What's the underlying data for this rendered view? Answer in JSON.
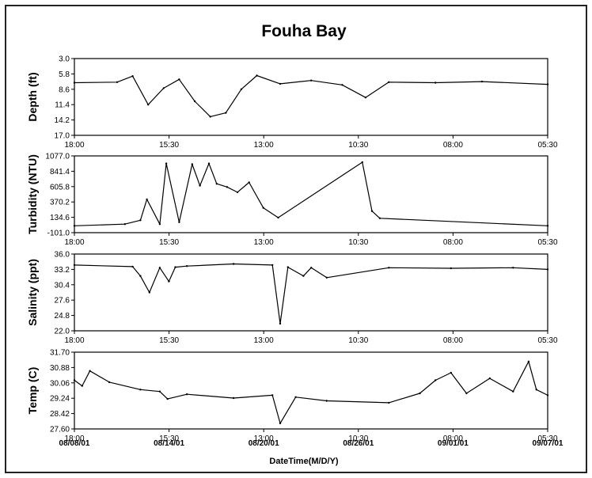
{
  "chart_data": {
    "title": "Fouha Bay",
    "xlabel": "DateTime(M/D/Y)",
    "x_time_ticks": [
      "18:00",
      "15:30",
      "13:00",
      "10:30",
      "08:00",
      "05:30"
    ],
    "x_date_ticks": [
      "08/08/01",
      "08/14/01",
      "08/20/01",
      "08/26/01",
      "09/01/01",
      "09/07/01"
    ],
    "line_color": "#000000",
    "panels": [
      {
        "type": "line",
        "ylabel": "Depth (ft)",
        "yticks": [
          "3.0",
          "5.8",
          "8.6",
          "11.4",
          "14.2",
          "17.0"
        ],
        "ylim": [
          17.0,
          3.0
        ],
        "inverted": true,
        "x": [
          "08/07 18:00",
          "08/10 12:00",
          "08/11 12:00",
          "08/12 12:00",
          "08/13 12:00",
          "08/14 12:00",
          "08/15 12:00",
          "08/16 12:00",
          "08/17 12:00",
          "08/18 12:00",
          "08/19 12:00",
          "08/21 00:00",
          "08/23 00:00",
          "08/25 00:00",
          "08/26 12:00",
          "08/28 00:00",
          "08/31 00:00",
          "09/03 00:00",
          "09/07 05:30"
        ],
        "values": [
          7.4,
          7.3,
          6.2,
          11.4,
          8.4,
          6.8,
          10.8,
          13.6,
          12.9,
          8.6,
          6.1,
          7.6,
          7.0,
          7.8,
          10.1,
          7.3,
          7.4,
          7.2,
          7.7
        ]
      },
      {
        "type": "line",
        "ylabel": "Turbidity (NTU)",
        "yticks": [
          "1077.0",
          "841.4",
          "605.8",
          "370.2",
          "134.6",
          "-101.0"
        ],
        "ylim": [
          -101.0,
          1077.0
        ],
        "x": [
          "08/07 18:00",
          "08/11 00:00",
          "08/12 00:00",
          "08/12 10:00",
          "08/13 06:00",
          "08/13 16:00",
          "08/14 12:00",
          "08/15 08:00",
          "08/15 20:00",
          "08/16 10:00",
          "08/16 22:00",
          "08/17 14:00",
          "08/18 06:00",
          "08/19 00:00",
          "08/19 22:00",
          "08/20 21:00",
          "08/26 07:00",
          "08/26 22:00",
          "08/27 10:00",
          "09/07 05:30"
        ],
        "values": [
          5,
          30,
          90,
          410,
          30,
          960,
          60,
          950,
          620,
          960,
          650,
          600,
          520,
          670,
          280,
          130,
          980,
          230,
          120,
          5
        ]
      },
      {
        "type": "line",
        "ylabel": "Salinity (ppt)",
        "yticks": [
          "36.0",
          "33.2",
          "30.4",
          "27.6",
          "24.8",
          "22.0"
        ],
        "ylim": [
          22.0,
          36.0
        ],
        "x": [
          "08/07 18:00",
          "08/11 12:00",
          "08/12 00:00",
          "08/12 14:00",
          "08/13 06:00",
          "08/13 20:00",
          "08/14 06:00",
          "08/15 00:00",
          "08/18 00:00",
          "08/20 12:00",
          "08/21 00:00",
          "08/21 12:00",
          "08/22 12:00",
          "08/23 00:00",
          "08/24 00:00",
          "08/28 00:00",
          "09/01 00:00",
          "09/05 00:00",
          "09/07 05:30"
        ],
        "values": [
          34.0,
          33.7,
          32.0,
          29.0,
          33.5,
          31.0,
          33.6,
          33.8,
          34.2,
          34.0,
          23.3,
          33.6,
          32.0,
          33.5,
          31.7,
          33.5,
          33.4,
          33.5,
          33.2
        ]
      },
      {
        "type": "line",
        "ylabel": "Temp (C)",
        "yticks": [
          "31.70",
          "30.88",
          "30.06",
          "29.24",
          "28.42",
          "27.60"
        ],
        "ylim": [
          27.6,
          31.7
        ],
        "x": [
          "08/07 18:00",
          "08/08 06:00",
          "08/08 18:00",
          "08/10 00:00",
          "08/12 00:00",
          "08/13 06:00",
          "08/13 18:00",
          "08/15 00:00",
          "08/18 00:00",
          "08/20 12:00",
          "08/21 00:00",
          "08/22 00:00",
          "08/24 00:00",
          "08/28 00:00",
          "08/30 00:00",
          "08/31 00:00",
          "09/01 00:00",
          "09/02 00:00",
          "09/03 12:00",
          "09/05 00:00",
          "09/06 00:00",
          "09/06 12:00",
          "09/07 05:30"
        ],
        "values": [
          30.2,
          29.9,
          30.7,
          30.1,
          29.7,
          29.6,
          29.2,
          29.45,
          29.25,
          29.4,
          27.9,
          29.3,
          29.1,
          29.0,
          29.5,
          30.2,
          30.6,
          29.5,
          30.3,
          29.6,
          31.2,
          29.7,
          29.4
        ]
      }
    ]
  }
}
